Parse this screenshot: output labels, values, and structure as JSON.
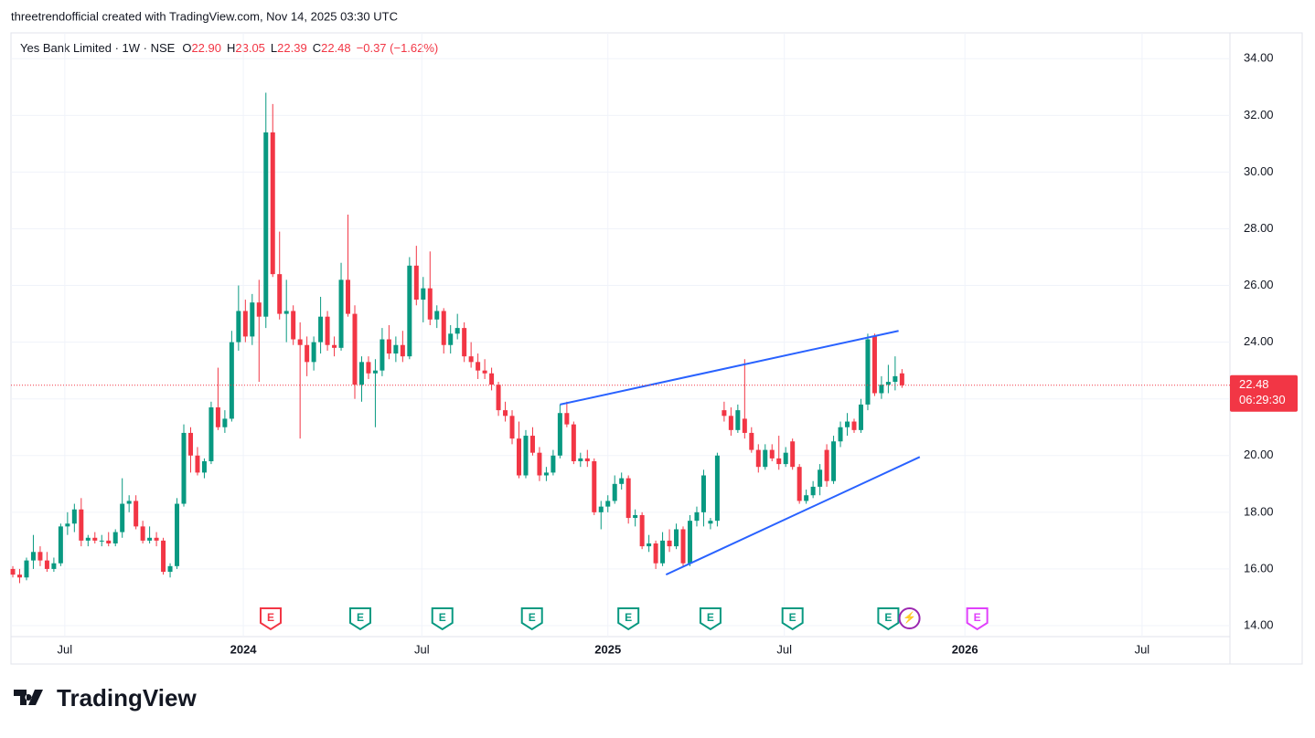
{
  "header": "threetrendofficial created with TradingView.com, Nov 14, 2025 03:30 UTC",
  "chart_data": {
    "type": "candlestick",
    "legend": {
      "name": "Yes Bank Limited · 1W · NSE",
      "o_key": "O",
      "o": "22.90",
      "h_key": "H",
      "h": "23.05",
      "l_key": "L",
      "l": "22.39",
      "c_key": "C",
      "c": "22.48",
      "change": "−0.37 (−1.62%)"
    },
    "colors": {
      "up": "#089981",
      "down": "#f23645",
      "trend": "#2962ff"
    },
    "price_label": "22.48",
    "countdown": "06:29:30",
    "ylim": [
      14,
      34.73
    ],
    "yticks": [
      {
        "value": 14,
        "label": "14.00"
      },
      {
        "value": 16,
        "label": "16.00"
      },
      {
        "value": 18,
        "label": "18.00"
      },
      {
        "value": 20,
        "label": "20.00"
      },
      {
        "value": 22,
        "label": "22.00"
      },
      {
        "value": 24,
        "label": "24.00"
      },
      {
        "value": 26,
        "label": "26.00"
      },
      {
        "value": 28,
        "label": "28.00"
      },
      {
        "value": 30,
        "label": "30.00"
      },
      {
        "value": 32,
        "label": "32.00"
      },
      {
        "value": 34,
        "label": "34.00"
      }
    ],
    "xlim": [
      -0.27,
      177.95
    ],
    "xticks": [
      {
        "value": 7.6,
        "label": "Jul"
      },
      {
        "value": 33.7,
        "label": "2024"
      },
      {
        "value": 59.8,
        "label": "Jul"
      },
      {
        "value": 87,
        "label": "2025"
      },
      {
        "value": 112.8,
        "label": "Jul"
      },
      {
        "value": 139.2,
        "label": "2026"
      },
      {
        "value": 165.1,
        "label": "Jul"
      }
    ],
    "grid": true,
    "candles": [
      [
        16.0,
        16.1,
        15.7,
        15.8
      ],
      [
        15.8,
        16.0,
        15.5,
        15.7
      ],
      [
        15.7,
        16.4,
        15.6,
        16.3
      ],
      [
        16.3,
        17.2,
        16.0,
        16.6
      ],
      [
        16.6,
        16.8,
        16.1,
        16.3
      ],
      [
        16.3,
        16.6,
        15.9,
        16.0
      ],
      [
        16.0,
        16.4,
        15.9,
        16.2
      ],
      [
        16.2,
        17.6,
        16.1,
        17.5
      ],
      [
        17.5,
        18.0,
        17.2,
        17.6
      ],
      [
        17.6,
        18.3,
        17.3,
        18.1
      ],
      [
        18.1,
        18.5,
        16.8,
        17.0
      ],
      [
        17.0,
        17.2,
        16.8,
        17.1
      ],
      [
        17.1,
        17.3,
        16.9,
        17.0
      ],
      [
        17.0,
        17.2,
        16.8,
        17.0
      ],
      [
        17.0,
        17.3,
        16.8,
        16.9
      ],
      [
        16.9,
        17.4,
        16.8,
        17.3
      ],
      [
        17.3,
        19.2,
        17.1,
        18.3
      ],
      [
        18.3,
        18.6,
        18.0,
        18.4
      ],
      [
        18.4,
        18.6,
        17.4,
        17.5
      ],
      [
        17.5,
        17.7,
        16.9,
        17.0
      ],
      [
        17.0,
        17.5,
        16.9,
        17.1
      ],
      [
        17.1,
        17.3,
        16.8,
        17.0
      ],
      [
        17.0,
        17.1,
        15.8,
        15.9
      ],
      [
        15.9,
        16.2,
        15.7,
        16.1
      ],
      [
        16.1,
        18.5,
        16.0,
        18.3
      ],
      [
        18.3,
        21.1,
        18.2,
        20.8
      ],
      [
        20.8,
        21.0,
        19.4,
        20.0
      ],
      [
        20.0,
        20.3,
        19.3,
        19.4
      ],
      [
        19.4,
        19.9,
        19.2,
        19.8
      ],
      [
        19.8,
        21.9,
        19.7,
        21.7
      ],
      [
        21.7,
        23.1,
        20.9,
        21.0
      ],
      [
        21.0,
        21.6,
        20.8,
        21.3
      ],
      [
        21.3,
        24.4,
        21.2,
        24.0
      ],
      [
        24.0,
        26.0,
        23.7,
        25.1
      ],
      [
        25.1,
        25.5,
        24.0,
        24.2
      ],
      [
        24.2,
        25.7,
        23.9,
        25.4
      ],
      [
        25.4,
        26.2,
        22.6,
        24.9
      ],
      [
        24.9,
        32.8,
        24.5,
        31.4
      ],
      [
        31.4,
        32.4,
        26.3,
        26.4
      ],
      [
        26.4,
        27.9,
        24.8,
        25.0
      ],
      [
        25.0,
        26.2,
        24.0,
        25.1
      ],
      [
        25.1,
        25.3,
        23.9,
        24.1
      ],
      [
        24.1,
        24.7,
        20.6,
        23.9
      ],
      [
        23.9,
        24.2,
        22.8,
        23.3
      ],
      [
        23.3,
        24.2,
        23.0,
        24.0
      ],
      [
        24.0,
        25.6,
        23.6,
        24.9
      ],
      [
        24.9,
        25.1,
        23.7,
        23.9
      ],
      [
        23.9,
        24.2,
        23.5,
        23.8
      ],
      [
        23.8,
        26.8,
        23.7,
        26.2
      ],
      [
        26.2,
        28.5,
        24.9,
        25.0
      ],
      [
        25.0,
        25.3,
        22.0,
        22.5
      ],
      [
        22.5,
        23.5,
        21.9,
        23.3
      ],
      [
        23.3,
        23.5,
        22.7,
        22.9
      ],
      [
        22.9,
        23.4,
        21.0,
        23.0
      ],
      [
        23.0,
        24.5,
        22.8,
        24.1
      ],
      [
        24.1,
        24.6,
        23.4,
        23.6
      ],
      [
        23.6,
        24.2,
        23.3,
        23.9
      ],
      [
        23.9,
        24.4,
        23.3,
        23.5
      ],
      [
        23.5,
        27.0,
        23.4,
        26.7
      ],
      [
        26.7,
        27.4,
        25.3,
        25.5
      ],
      [
        25.5,
        26.3,
        24.7,
        25.9
      ],
      [
        25.9,
        27.2,
        24.6,
        24.8
      ],
      [
        24.8,
        25.3,
        24.5,
        25.1
      ],
      [
        25.1,
        25.2,
        23.6,
        23.9
      ],
      [
        23.9,
        24.6,
        23.6,
        24.3
      ],
      [
        24.3,
        25.0,
        24.1,
        24.5
      ],
      [
        24.5,
        24.7,
        23.3,
        23.5
      ],
      [
        23.5,
        24.0,
        23.1,
        23.3
      ],
      [
        23.3,
        23.6,
        22.7,
        23.0
      ],
      [
        23.0,
        23.4,
        22.7,
        22.9
      ],
      [
        22.9,
        23.1,
        22.3,
        22.5
      ],
      [
        22.5,
        22.6,
        21.4,
        21.6
      ],
      [
        21.6,
        21.9,
        21.2,
        21.4
      ],
      [
        21.4,
        21.6,
        20.4,
        20.6
      ],
      [
        20.6,
        21.2,
        19.2,
        19.3
      ],
      [
        19.3,
        20.9,
        19.2,
        20.7
      ],
      [
        20.7,
        21.0,
        20.0,
        20.1
      ],
      [
        20.1,
        20.3,
        19.1,
        19.3
      ],
      [
        19.3,
        19.6,
        19.1,
        19.4
      ],
      [
        19.4,
        20.2,
        19.3,
        20.0
      ],
      [
        20.0,
        21.8,
        19.9,
        21.5
      ],
      [
        21.5,
        21.9,
        21.0,
        21.1
      ],
      [
        21.1,
        21.2,
        19.7,
        19.8
      ],
      [
        19.8,
        20.1,
        19.6,
        19.9
      ],
      [
        19.9,
        20.2,
        19.6,
        19.8
      ],
      [
        19.8,
        19.9,
        17.9,
        18.0
      ],
      [
        18.0,
        18.4,
        17.4,
        18.2
      ],
      [
        18.2,
        18.6,
        18.0,
        18.4
      ],
      [
        18.4,
        19.3,
        18.3,
        19.0
      ],
      [
        19.0,
        19.4,
        18.8,
        19.2
      ],
      [
        19.2,
        19.3,
        17.6,
        17.8
      ],
      [
        17.8,
        18.1,
        17.5,
        17.9
      ],
      [
        17.9,
        18.0,
        16.7,
        16.8
      ],
      [
        16.8,
        17.2,
        16.6,
        16.9
      ],
      [
        16.9,
        17.0,
        16.0,
        16.2
      ],
      [
        16.2,
        17.3,
        16.1,
        17.0
      ],
      [
        17.0,
        17.4,
        16.6,
        16.8
      ],
      [
        16.8,
        17.6,
        16.7,
        17.4
      ],
      [
        17.4,
        17.5,
        16.1,
        16.2
      ],
      [
        16.2,
        17.9,
        16.1,
        17.7
      ],
      [
        17.7,
        18.2,
        17.5,
        18.0
      ],
      [
        18.0,
        19.5,
        17.5,
        19.3
      ],
      [
        17.6,
        17.8,
        17.4,
        17.7
      ],
      [
        17.7,
        20.1,
        17.5,
        20.0
      ],
      [
        21.6,
        21.9,
        21.2,
        21.4
      ],
      [
        21.4,
        21.7,
        20.7,
        20.9
      ],
      [
        20.9,
        21.8,
        20.8,
        21.6
      ],
      [
        21.3,
        23.4,
        20.6,
        20.8
      ],
      [
        20.8,
        21.0,
        20.1,
        20.2
      ],
      [
        20.2,
        20.4,
        19.4,
        19.6
      ],
      [
        19.6,
        20.4,
        19.5,
        20.2
      ],
      [
        20.2,
        20.4,
        19.8,
        19.9
      ],
      [
        19.9,
        20.7,
        19.5,
        19.7
      ],
      [
        19.7,
        20.3,
        19.6,
        20.1
      ],
      [
        20.5,
        20.6,
        19.5,
        19.6
      ],
      [
        19.6,
        19.7,
        18.3,
        18.4
      ],
      [
        18.4,
        18.8,
        18.3,
        18.6
      ],
      [
        18.6,
        19.1,
        18.5,
        18.9
      ],
      [
        18.9,
        19.7,
        18.6,
        19.5
      ],
      [
        20.2,
        20.4,
        18.9,
        19.1
      ],
      [
        19.1,
        20.7,
        19.0,
        20.5
      ],
      [
        20.5,
        21.2,
        20.3,
        21.0
      ],
      [
        21.0,
        21.5,
        20.7,
        21.2
      ],
      [
        21.2,
        21.3,
        20.8,
        20.9
      ],
      [
        20.9,
        22.0,
        20.8,
        21.8
      ],
      [
        21.8,
        24.3,
        21.6,
        24.1
      ],
      [
        24.2,
        24.3,
        22.1,
        22.2
      ],
      [
        22.2,
        22.8,
        22.0,
        22.5
      ],
      [
        22.5,
        23.2,
        22.2,
        22.6
      ],
      [
        22.6,
        23.5,
        22.3,
        22.8
      ],
      [
        22.9,
        23.05,
        22.39,
        22.48
      ]
    ],
    "trendlines": [
      [
        80,
        21.8,
        129.5,
        24.4
      ],
      [
        95.5,
        15.8,
        132.6,
        19.95
      ]
    ],
    "events": [
      {
        "x": 37.7,
        "label": "E",
        "kind": "past"
      },
      {
        "x": 50.8,
        "label": "E",
        "kind": "normal"
      },
      {
        "x": 62.8,
        "label": "E",
        "kind": "normal"
      },
      {
        "x": 75.9,
        "label": "E",
        "kind": "normal"
      },
      {
        "x": 90,
        "label": "E",
        "kind": "normal"
      },
      {
        "x": 102,
        "label": "E",
        "kind": "normal"
      },
      {
        "x": 114,
        "label": "E",
        "kind": "normal"
      },
      {
        "x": 128,
        "label": "E",
        "kind": "normal"
      },
      {
        "x": 131.1,
        "label": "⚡",
        "kind": "split"
      },
      {
        "x": 141,
        "label": "E",
        "kind": "future"
      }
    ]
  },
  "footer": {
    "logo": "TradingView"
  }
}
